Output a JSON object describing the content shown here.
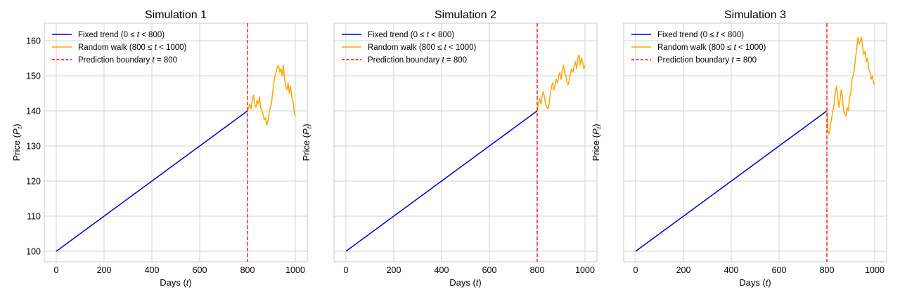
{
  "chart_data": [
    {
      "type": "line",
      "title": "Simulation 1",
      "xlabel": "Days (t)",
      "ylabel": "Price (P_t)",
      "xlim": [
        -50,
        1050
      ],
      "ylim": [
        97,
        165
      ],
      "xticks": [
        0,
        200,
        400,
        600,
        800,
        1000
      ],
      "yticks": [
        100,
        110,
        120,
        130,
        140,
        150,
        160
      ],
      "show_yticklabels": true,
      "grid": true,
      "legend_position": "top-left",
      "boundary": 800,
      "series": [
        {
          "name": "Fixed trend (0 ≤ t < 800)",
          "color": "#0000cd",
          "style": "solid",
          "x": [
            0,
            800
          ],
          "y": [
            100,
            140
          ]
        },
        {
          "name": "Random walk (800 ≤ t < 1000)",
          "color": "#ffa500",
          "style": "solid",
          "x": [
            800,
            805,
            810,
            815,
            820,
            825,
            830,
            835,
            840,
            845,
            850,
            855,
            860,
            865,
            870,
            875,
            880,
            885,
            890,
            895,
            900,
            905,
            910,
            915,
            920,
            925,
            930,
            935,
            940,
            945,
            950,
            955,
            960,
            965,
            970,
            975,
            980,
            985,
            990,
            995,
            1000
          ],
          "y": [
            140,
            141,
            142,
            140.5,
            143,
            144.5,
            142,
            141,
            143,
            142,
            144,
            141,
            140,
            139,
            137.5,
            138,
            136,
            137,
            139,
            141,
            142,
            145,
            148,
            150,
            151,
            152.5,
            153,
            151,
            152,
            150,
            153,
            149,
            147,
            146,
            148,
            145,
            147,
            144,
            143,
            140,
            138.5
          ]
        },
        {
          "name": "Prediction boundary t = 800",
          "color": "#ff0000",
          "style": "dashed"
        }
      ]
    },
    {
      "type": "line",
      "title": "Simulation 2",
      "xlabel": "Days (t)",
      "ylabel": "Price (P_t)",
      "xlim": [
        -50,
        1050
      ],
      "ylim": [
        97,
        165
      ],
      "xticks": [
        0,
        200,
        400,
        600,
        800,
        1000
      ],
      "yticks": [
        100,
        110,
        120,
        130,
        140,
        150,
        160
      ],
      "show_yticklabels": false,
      "grid": true,
      "legend_position": "top-left",
      "boundary": 800,
      "series": [
        {
          "name": "Fixed trend (0 ≤ t < 800)",
          "color": "#0000cd",
          "style": "solid",
          "x": [
            0,
            800
          ],
          "y": [
            100,
            140
          ]
        },
        {
          "name": "Random walk (800 ≤ t < 1000)",
          "color": "#ffa500",
          "style": "solid",
          "x": [
            800,
            805,
            810,
            815,
            820,
            825,
            830,
            835,
            840,
            845,
            850,
            855,
            860,
            865,
            870,
            875,
            880,
            885,
            890,
            895,
            900,
            905,
            910,
            915,
            920,
            925,
            930,
            935,
            940,
            945,
            950,
            955,
            960,
            965,
            970,
            975,
            980,
            985,
            990,
            995,
            1000
          ],
          "y": [
            140,
            142,
            143.5,
            142,
            144,
            145.5,
            144,
            142,
            141,
            140.5,
            142,
            145,
            147,
            148,
            146,
            147.5,
            149,
            148,
            150,
            151,
            149,
            151.5,
            153,
            151,
            150,
            148,
            147.5,
            149,
            151,
            152,
            151,
            153,
            154,
            152,
            155,
            156,
            153,
            155,
            154,
            152,
            153
          ]
        },
        {
          "name": "Prediction boundary t = 800",
          "color": "#ff0000",
          "style": "dashed"
        }
      ]
    },
    {
      "type": "line",
      "title": "Simulation 3",
      "xlabel": "Days (t)",
      "ylabel": "Price (P_t)",
      "xlim": [
        -50,
        1050
      ],
      "ylim": [
        97,
        165
      ],
      "xticks": [
        0,
        200,
        400,
        600,
        800,
        1000
      ],
      "yticks": [
        100,
        110,
        120,
        130,
        140,
        150,
        160
      ],
      "show_yticklabels": false,
      "grid": true,
      "legend_position": "top-left",
      "boundary": 800,
      "series": [
        {
          "name": "Fixed trend (0 ≤ t < 800)",
          "color": "#0000cd",
          "style": "solid",
          "x": [
            0,
            800
          ],
          "y": [
            100,
            140
          ]
        },
        {
          "name": "Random walk (800 ≤ t < 1000)",
          "color": "#ffa500",
          "style": "solid",
          "x": [
            800,
            805,
            810,
            815,
            820,
            825,
            830,
            835,
            840,
            845,
            850,
            855,
            860,
            865,
            870,
            875,
            880,
            885,
            890,
            895,
            900,
            905,
            910,
            915,
            920,
            925,
            930,
            935,
            940,
            945,
            950,
            955,
            960,
            965,
            970,
            975,
            980,
            985,
            990,
            995,
            1000
          ],
          "y": [
            140,
            134,
            133.5,
            136,
            138,
            140,
            142,
            145,
            147,
            144,
            141,
            143,
            146,
            144,
            140,
            139,
            138.5,
            141,
            140,
            144,
            145,
            149,
            150,
            152,
            155,
            158,
            161,
            159,
            160,
            161,
            158,
            156,
            157,
            154,
            155,
            152,
            151,
            149,
            150,
            148,
            147.5
          ]
        },
        {
          "name": "Prediction boundary t = 800",
          "color": "#ff0000",
          "style": "dashed"
        }
      ]
    }
  ]
}
